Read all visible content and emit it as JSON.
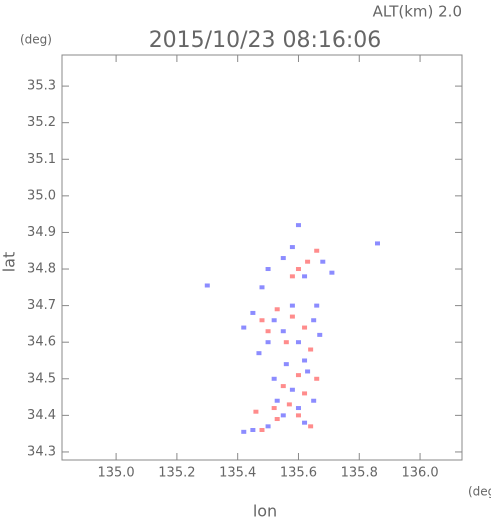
{
  "chart_data": {
    "type": "scatter",
    "title": "2015/10/23 08:16:06",
    "subtitle": "ALT(km) 2.0",
    "y_unit": "(deg)",
    "x_unit": "(deg)",
    "xlabel": "lon",
    "ylabel": "lat",
    "xlim": [
      134.822,
      136.138
    ],
    "ylim": [
      34.278,
      35.385
    ],
    "xticks": [
      {
        "value": 135.0,
        "label": "135.0"
      },
      135.2,
      135.4,
      135.6,
      135.8,
      {
        "value": 136.0,
        "label": "136.0"
      }
    ],
    "yticks": [
      34.3,
      34.4,
      34.5,
      34.6,
      34.7,
      34.8,
      34.9,
      {
        "value": 35.0,
        "label": "35.0"
      },
      35.1,
      35.2,
      35.3
    ],
    "series": [
      {
        "color": "#8c8cff",
        "x": [
          135.42,
          135.45,
          135.5,
          135.55,
          135.6,
          135.65,
          135.62,
          135.58,
          135.52,
          135.63,
          135.47,
          135.5,
          135.55,
          135.6,
          135.65,
          135.45,
          135.58,
          135.67,
          135.52,
          135.62,
          135.5,
          135.55,
          135.62,
          135.68,
          135.58,
          135.71,
          135.3,
          135.86,
          135.48,
          135.6,
          135.42,
          135.66,
          135.53,
          135.56
        ],
        "values": [
          34.355,
          34.36,
          34.37,
          34.4,
          34.42,
          34.44,
          34.38,
          34.47,
          34.5,
          34.52,
          34.57,
          34.6,
          34.63,
          34.6,
          34.66,
          34.68,
          34.7,
          34.62,
          34.66,
          34.55,
          34.8,
          34.83,
          34.78,
          34.82,
          34.86,
          34.79,
          34.755,
          34.87,
          34.75,
          34.92,
          34.64,
          34.7,
          34.44,
          34.54
        ]
      },
      {
        "color": "#ff8c8c",
        "x": [
          135.48,
          135.53,
          135.6,
          135.64,
          135.57,
          135.62,
          135.55,
          135.6,
          135.5,
          135.56,
          135.62,
          135.58,
          135.53,
          135.64,
          135.48,
          135.6,
          135.58,
          135.66,
          135.63,
          135.52,
          135.46,
          135.66
        ],
        "values": [
          34.36,
          34.39,
          34.4,
          34.37,
          34.43,
          34.46,
          34.48,
          34.51,
          34.63,
          34.6,
          34.64,
          34.67,
          34.69,
          34.58,
          34.66,
          34.8,
          34.78,
          34.85,
          34.82,
          34.42,
          34.41,
          34.5
        ]
      }
    ]
  }
}
